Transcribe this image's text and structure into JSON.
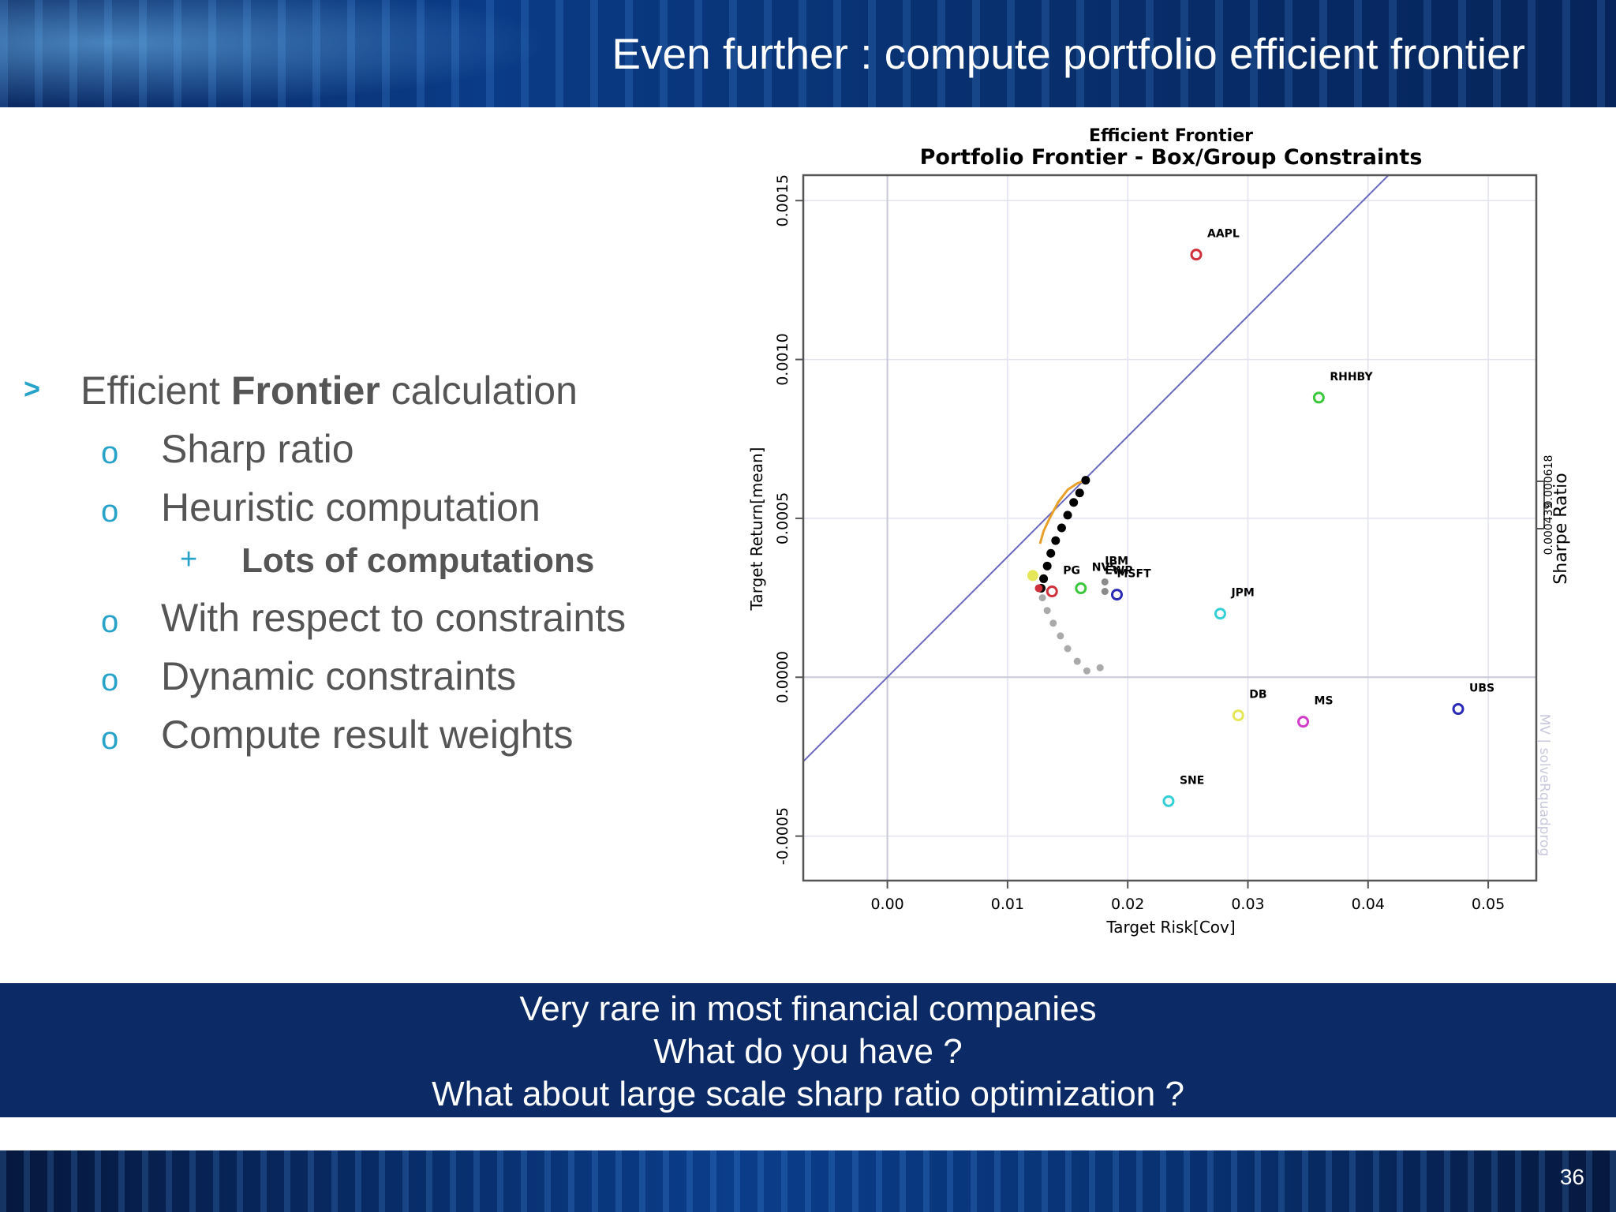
{
  "slide": {
    "title": "Even further : compute portfolio efficient frontier",
    "page_number": "36"
  },
  "bullets": {
    "main_prefix": "Efficient ",
    "main_bold": "Frontier",
    "main_suffix": " calculation",
    "main_marker": ">",
    "sub_marker": "o",
    "subsub_marker": "+",
    "items": [
      "Sharp ratio",
      "Heuristic computation",
      "With respect to constraints",
      "Dynamic constraints",
      "Compute result weights"
    ],
    "subsub": "Lots of computations"
  },
  "callout": {
    "line1": "Very rare in most financial companies",
    "line2": "What do you have ?",
    "line3": "What about large scale sharp ratio optimization ?"
  },
  "chart_data": {
    "type": "scatter",
    "title": "Efficient Frontier",
    "subtitle": "Portfolio Frontier - Box/Group Constraints",
    "xlabel": "Target Risk[Cov]",
    "ylabel": "Target Return[mean]",
    "right_axis_label": "Sharpe Ratio",
    "right_axis_ticks": [
      "0.000439",
      "0.000618"
    ],
    "watermark": "MV | solveRquadprog",
    "xlim": [
      -0.007,
      0.054
    ],
    "ylim": [
      -0.00064,
      0.00158
    ],
    "x_ticks": [
      "0.00",
      "0.01",
      "0.02",
      "0.03",
      "0.04",
      "0.05"
    ],
    "x_tick_values": [
      0.0,
      0.01,
      0.02,
      0.03,
      0.04,
      0.05
    ],
    "y_ticks": [
      "-0.0005",
      "0.0000",
      "0.0005",
      "0.0010",
      "0.0015"
    ],
    "y_tick_values": [
      -0.0005,
      0.0,
      0.0005,
      0.001,
      0.0015
    ],
    "grid": true,
    "assets": [
      {
        "name": "AAPL",
        "x": 0.0257,
        "y": 0.00133,
        "color": "#d0303a"
      },
      {
        "name": "RHHBY",
        "x": 0.0359,
        "y": 0.00088,
        "color": "#3cc83c"
      },
      {
        "name": "JPM",
        "x": 0.0277,
        "y": 0.0002,
        "color": "#35cfd6"
      },
      {
        "name": "MSFT",
        "x": 0.0191,
        "y": 0.00026,
        "color": "#2a28b6"
      },
      {
        "name": "EWP",
        "x": 0.0181,
        "y": 0.00027,
        "color": "#8a8a8a"
      },
      {
        "name": "IBM",
        "x": 0.0181,
        "y": 0.0003,
        "color": "#8a8a8a"
      },
      {
        "name": "NVS",
        "x": 0.0161,
        "y": 0.00028,
        "color": "#3cc83c"
      },
      {
        "name": "PG",
        "x": 0.0137,
        "y": 0.00027,
        "color": "#d0303a"
      },
      {
        "name": "DB",
        "x": 0.0292,
        "y": -0.00012,
        "color": "#e6e65a"
      },
      {
        "name": "MS",
        "x": 0.0346,
        "y": -0.00014,
        "color": "#d23cc8"
      },
      {
        "name": "UBS",
        "x": 0.0475,
        "y": -0.0001,
        "color": "#2a28b6"
      },
      {
        "name": "SNE",
        "x": 0.0234,
        "y": -0.00039,
        "color": "#35cfd6"
      }
    ],
    "frontier_efficient": {
      "x": [
        0.0128,
        0.013,
        0.0133,
        0.0136,
        0.014,
        0.0145,
        0.015,
        0.0155,
        0.016,
        0.0165
      ],
      "y": [
        0.00028,
        0.00031,
        0.00035,
        0.00039,
        0.00043,
        0.00047,
        0.00051,
        0.00055,
        0.00058,
        0.00062
      ]
    },
    "frontier_inefficient": {
      "x": [
        0.0129,
        0.0133,
        0.0138,
        0.0144,
        0.015,
        0.0158,
        0.0166,
        0.0177
      ],
      "y": [
        0.00025,
        0.00021,
        0.00017,
        0.00013,
        9e-05,
        5e-05,
        2e-05,
        3e-05
      ]
    },
    "tangency_line": {
      "x": [
        -0.007,
        0.0417
      ],
      "y": [
        -0.000265,
        0.00158
      ]
    },
    "sharpe_curve": {
      "x": [
        0.0127,
        0.013,
        0.0135,
        0.0142,
        0.015,
        0.0158,
        0.0165
      ],
      "y": [
        0.00042,
        0.00046,
        0.0005,
        0.00055,
        0.00059,
        0.00061,
        0.00062
      ]
    },
    "min_variance_point": {
      "x": 0.0121,
      "y": 0.00032,
      "color": "#e6e65a"
    },
    "equal_weights_point": {
      "x": 0.0126,
      "y": 0.00028,
      "color": "#d0303a"
    },
    "colors": {
      "tangency": "#6b69bf",
      "sharpe": "#e8a02a",
      "frontier": "#000000",
      "inefficient": "#aaaaaa"
    }
  }
}
